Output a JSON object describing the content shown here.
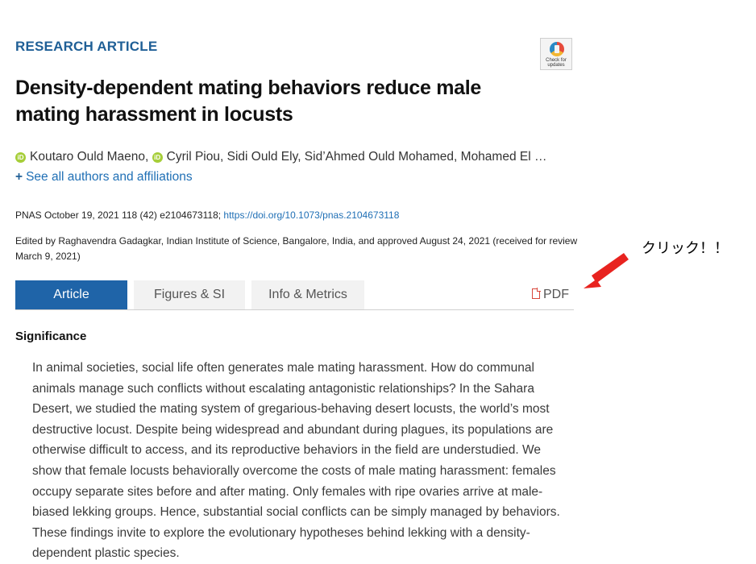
{
  "article": {
    "kicker": "RESEARCH ARTICLE",
    "crossmark_text": "Check for updates",
    "title": "Density-dependent mating behaviors reduce male mating harassment in locusts",
    "authors": {
      "author1": "Koutaro Ould Maeno,",
      "author2": "Cyril Piou,",
      "rest": "Sidi Ould Ely, Sid’Ahmed Ould Mohamed, Mohamed El …"
    },
    "see_all": "See all authors and affiliations",
    "see_all_plus": "+",
    "citation_text": "PNAS October 19, 2021 118 (42) e2104673118;",
    "doi": "https://doi.org/10.1073/pnas.2104673118",
    "edited": "Edited by Raghavendra Gadagkar, Indian Institute of Science, Bangalore, India, and approved August 24, 2021 (received for review March 9, 2021)"
  },
  "tabs": {
    "article": "Article",
    "figures": "Figures & SI",
    "info": "Info & Metrics",
    "pdf": "PDF"
  },
  "annotation": {
    "text": "クリック！！",
    "arrow_color": "#e8231f"
  },
  "significance": {
    "heading": "Significance",
    "body": "In animal societies, social life often generates male mating harassment. How do communal animals manage such conflicts without escalating antagonistic relationships? In the Sahara Desert, we studied the mating system of gregarious-behaving desert locusts, the world’s most destructive locust. Despite being widespread and abundant during plagues, its populations are otherwise difficult to access, and its reproductive behaviors in the field are understudied. We show that female locusts behaviorally overcome the costs of male mating harassment: females occupy separate sites before and after mating. Only females with ripe ovaries arrive at male-biased lekking groups. Hence, substantial social conflicts can be simply managed by behaviors. These findings invite to explore the evolutionary hypotheses behind lekking with a density-dependent plastic species."
  },
  "colors": {
    "brand_blue": "#1f64a8",
    "link_blue": "#1f6fb5",
    "orcid_green": "#a6ce39"
  }
}
